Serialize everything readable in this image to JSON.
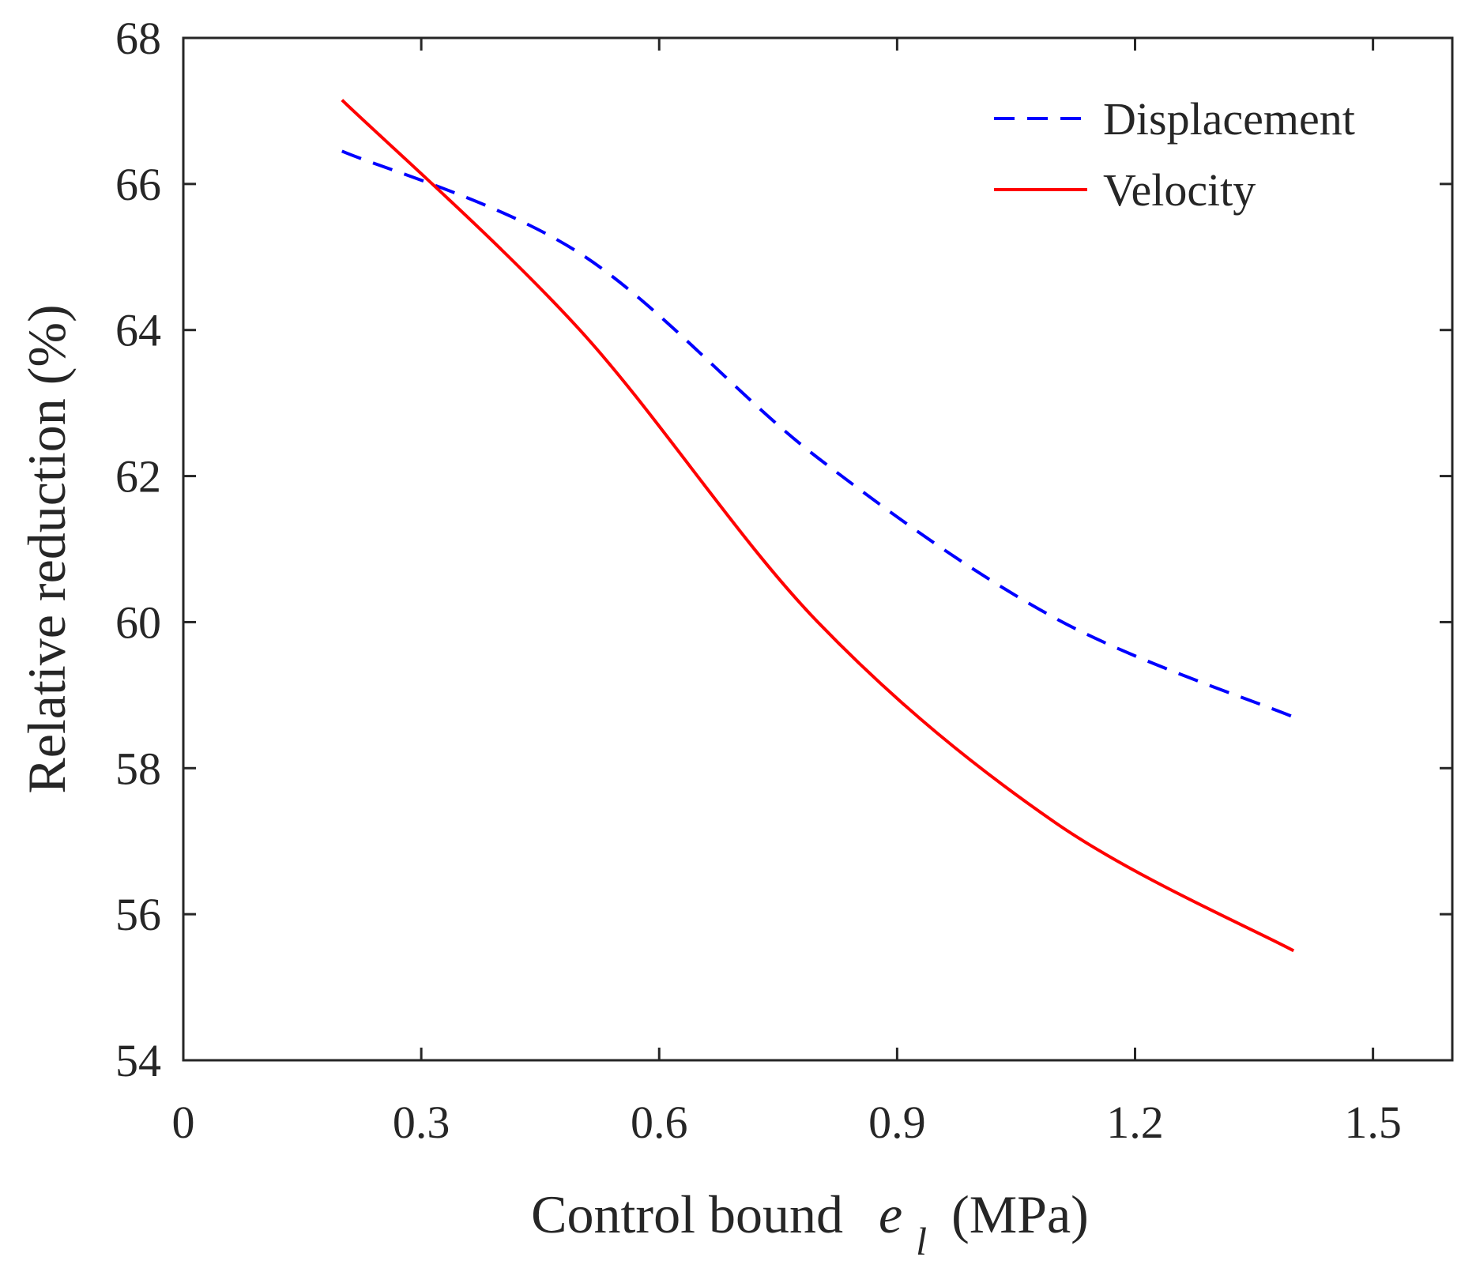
{
  "chart_data": {
    "type": "line",
    "title": "",
    "xlabel": {
      "prefix": "Control bound",
      "symbol": "e",
      "subscript": "l",
      "unit": "(MPa)"
    },
    "ylabel": "Relative reduction (%)",
    "xlim": [
      0,
      1.6
    ],
    "ylim": [
      54,
      68
    ],
    "xticks": [
      0,
      0.3,
      0.6,
      0.9,
      1.2,
      1.5
    ],
    "xtick_labels": [
      "0",
      "0.3",
      "0.6",
      "0.9",
      "1.2",
      "1.5"
    ],
    "yticks": [
      54,
      56,
      58,
      60,
      62,
      64,
      66,
      68
    ],
    "ytick_labels": [
      "54",
      "56",
      "58",
      "60",
      "62",
      "64",
      "66",
      "68"
    ],
    "grid": false,
    "legend_position": "top-right",
    "series": [
      {
        "name": "Displacement",
        "color": "#0000ff",
        "style": "dashed",
        "x": [
          0.2,
          0.5,
          0.8,
          1.1,
          1.4
        ],
        "y": [
          66.45,
          65.05,
          62.25,
          60.05,
          58.7
        ]
      },
      {
        "name": "Velocity",
        "color": "#ff0000",
        "style": "solid",
        "x": [
          0.2,
          0.5,
          0.8,
          1.1,
          1.4
        ],
        "y": [
          67.15,
          64.0,
          60.0,
          57.25,
          55.5
        ]
      }
    ]
  }
}
